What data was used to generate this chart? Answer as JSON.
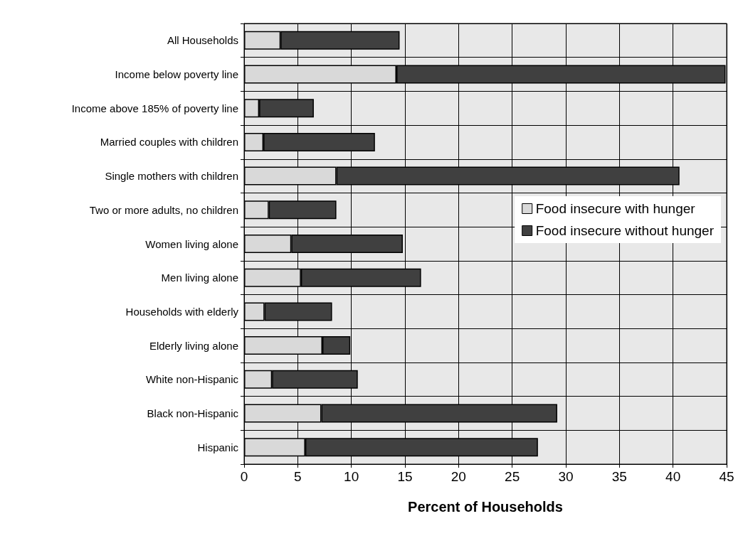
{
  "chart_data": {
    "type": "bar",
    "orientation": "horizontal",
    "stacked": true,
    "xlabel": "Percent of Households",
    "categories": [
      "All Households",
      "Income below poverty line",
      "Income above 185% of poverty line",
      "Married couples with children",
      "Single mothers with children",
      "Two or more adults, no children",
      "Women living alone",
      "Men living alone",
      "Households with elderly",
      "Elderly living alone",
      "White non-Hispanic",
      "Black non-Hispanic",
      "Hispanic"
    ],
    "series": [
      {
        "name": "Food insecure with hunger",
        "color": "#d9d9d9",
        "values": [
          3.4,
          14.2,
          1.4,
          1.8,
          8.6,
          2.3,
          4.4,
          5.3,
          1.9,
          7.3,
          2.6,
          7.2,
          5.7
        ]
      },
      {
        "name": "Food insecure without hunger",
        "color": "#404040",
        "values": [
          11.1,
          30.7,
          5.1,
          10.4,
          32.0,
          6.3,
          10.4,
          11.2,
          6.3,
          2.6,
          8.0,
          22.0,
          21.7
        ]
      }
    ],
    "xlim": [
      0,
      45
    ],
    "xticks": [
      0,
      5,
      10,
      15,
      20,
      25,
      30,
      35,
      40,
      45
    ],
    "grid": true,
    "legend": "right"
  }
}
